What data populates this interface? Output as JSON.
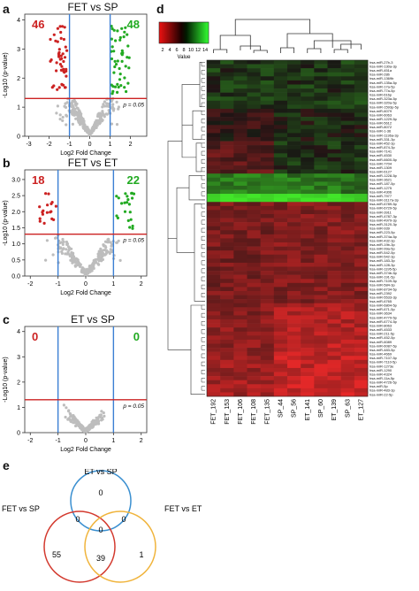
{
  "panels": {
    "a": {
      "letter": "a",
      "title": "FET vs SP",
      "count_left": "46",
      "count_right": "48",
      "p_label": "p = 0.05",
      "xlabel": "Log2 Fold Change",
      "ylabel": "-Log10 (p-value)",
      "x_ticks": [
        "-3",
        "-2",
        "-1",
        "0",
        "1",
        "2"
      ],
      "y_ticks": [
        "0",
        "1",
        "2",
        "3",
        "4"
      ]
    },
    "b": {
      "letter": "b",
      "title": "FET vs ET",
      "count_left": "18",
      "count_right": "22",
      "p_label": "p = 0.05",
      "xlabel": "Log2 Fold Change",
      "ylabel": "-Log10 (p-value)",
      "x_ticks": [
        "-2",
        "-1",
        "0",
        "1",
        "2"
      ],
      "y_ticks": [
        "0.0",
        "0.5",
        "1.0",
        "1.5",
        "2.0",
        "2.5",
        "3.0"
      ]
    },
    "c": {
      "letter": "c",
      "title": "ET vs SP",
      "count_left": "0",
      "count_right": "0",
      "p_label": "p = 0.05",
      "xlabel": "Log2 Fold Change",
      "ylabel": "-Log10 (p-value)",
      "x_ticks": [
        "-2",
        "-1",
        "0",
        "1",
        "2"
      ],
      "y_ticks": [
        "0",
        "1",
        "2",
        "3",
        "4"
      ]
    }
  },
  "heatmap": {
    "letter": "d",
    "legend_title": "Value",
    "legend_ticks": [
      "2",
      "4",
      "6",
      "8",
      "10",
      "12",
      "14"
    ],
    "samples": [
      "FET_192",
      "FET_153",
      "FET_106",
      "FET_108",
      "FET_135",
      "SP_44",
      "SP_56",
      "ET_141",
      "SP_60",
      "ET_139",
      "SP_63",
      "ET_127"
    ],
    "mirnas": [
      "hsa-miR-27b-3",
      "hsa-miR-130a-3p",
      "hsa-miR-451a",
      "hsa-miR-28b",
      "hsa-miR-1369b",
      "hsa-miR-135a-5p",
      "hsa-miR-17a-5p",
      "hsa-miR-77a-5p",
      "hsa-miR-616p",
      "hsa-miR-323a-5p",
      "hsa-miR-320a-5p",
      "hsa-miR-1593p-5p",
      "hsa-miR-6079",
      "hsa-miR-6063",
      "hsa-miR-1229-5p",
      "hsa-miR-5612",
      "hsa-miR-8072",
      "hsa-miR-1-36",
      "hsa-miR-1136a-3p",
      "hsa-miR-331-3p",
      "hsa-miR-452-3p",
      "hsa-miR-874-3p",
      "hsa-miR-7141",
      "hsa-miR-4530",
      "hsa-miR-6600-5p",
      "hsa-miR-7704",
      "hsa-miR-1309",
      "hsa-miR-6127",
      "hsa-miR-1228-5p",
      "hsa-miR-3621",
      "hsa-miR-187-5p",
      "hsa-miR-1275",
      "hsa-miR-4306",
      "hsa-miR-7977",
      "hsa-miR-3117a-3p",
      "hsa-miR-6789-5p",
      "hsa-miR-6729-5p",
      "hsa-miR-3911",
      "hsa-miR-4787-3p",
      "hsa-miR-4979-3p",
      "hsa-miR-3120-3p",
      "hsa-miR-939",
      "hsa-miR-223-5p",
      "hsa-miR-374a-5p",
      "hsa-miR-432-3p",
      "hsa-miR-19b-3p",
      "hsa-miR-99a-5p",
      "hsa-miR-542-5p",
      "hsa-miR-542-3p",
      "hsa-miR-183-3p",
      "hsa-miR-128-3p",
      "hsa-miR-1195-5p",
      "hsa-miR-374b-5p",
      "hsa-miR-191-5p",
      "hsa-miR-7109-5p",
      "hsa-miR-584-3p",
      "hsa-miR-8734-5p",
      "hsa-miR-2392",
      "hsa-miR-5533-3p",
      "hsa-miR-6765",
      "hsa-miR-6804-5p",
      "hsa-miR-671-5p",
      "hsa-miR-3634",
      "hsa-miR-4779-5p",
      "hsa-miR-6774-5p",
      "hsa-miR-8063",
      "hsa-miR-4533",
      "hsa-miR-211-5p",
      "hsa-miR-452-5p",
      "hsa-miR-6089",
      "hsa-miR-6087-5p",
      "hsa-miR-483-5p",
      "hsa-miR-4669",
      "hsa-miR-7107-5p",
      "hsa-miR-7110-5p",
      "hsa-miR-1273e",
      "hsa-miR-1290",
      "hsa-miR-4324",
      "hsa-miR-11a-5p",
      "hsa-miR-4726-5p",
      "hsa-miR-5p",
      "hsa-miR-483-3p",
      "hsa-miR-22-5p"
    ]
  },
  "venn": {
    "letter": "e",
    "label_top": "ET vs SP",
    "label_left": "FET vs SP",
    "label_right": "FET vs ET",
    "regions": {
      "top_only": "0",
      "left_top": "0",
      "right_top": "0",
      "center": "0",
      "left_only": "55",
      "left_right": "39",
      "right_only": "1"
    },
    "colors": {
      "top": "#3a8fd0",
      "left": "#d33a2f",
      "right": "#f0b43c"
    }
  },
  "colors": {
    "down": "#cc2222",
    "up": "#22aa22",
    "ns": "#bdbdbd",
    "threshold_v": "#3b7fd4",
    "threshold_h": "#cc2222"
  }
}
